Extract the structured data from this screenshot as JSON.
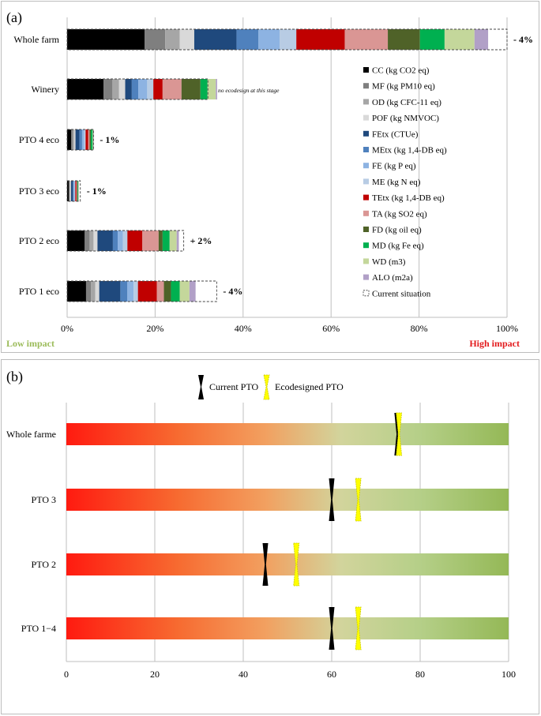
{
  "panel_a": {
    "label": "(a)",
    "low_impact_label": "Low impact",
    "high_impact_label": "High impact",
    "low_impact_color": "#9BBB59",
    "high_impact_color": "#E31A1C",
    "winery_note": "no ecodesign at this stage"
  },
  "panel_b": {
    "label": "(b)",
    "legend": {
      "current": "Current PTO",
      "ecodesigned": "Ecodesigned PTO"
    }
  },
  "chart_data": [
    {
      "type": "bar",
      "orientation": "horizontal-stacked",
      "title": "",
      "xlabel": "",
      "xlim": [
        0,
        100
      ],
      "x_ticks": [
        "0%",
        "20%",
        "40%",
        "60%",
        "80%",
        "100%"
      ],
      "grid": true,
      "legend_position": "right",
      "categories": [
        "Whole farm",
        "Winery",
        "PTO 4 eco",
        "PTO 3 eco",
        "PTO 2 eco",
        "PTO 1 eco"
      ],
      "series": [
        {
          "name": "CC (kg CO2 eq)",
          "color": "#000000",
          "values": [
            17.6,
            8.3,
            0.9,
            0.4,
            4.0,
            4.3
          ]
        },
        {
          "name": "MF (kg PM10 eq)",
          "color": "#7F7F7F",
          "values": [
            4.7,
            2.0,
            0.4,
            0.2,
            1.1,
            1.1
          ]
        },
        {
          "name": "OD (kg CFC-11 eq)",
          "color": "#A6A6A6",
          "values": [
            3.3,
            1.5,
            0.3,
            0.15,
            0.9,
            1.0
          ]
        },
        {
          "name": "POF (kg NMVOC)",
          "color": "#D9D9D9",
          "values": [
            3.3,
            1.4,
            0.3,
            0.15,
            0.9,
            0.9
          ]
        },
        {
          "name": "FEtx (CTUe)",
          "color": "#1F497D",
          "values": [
            9.6,
            1.5,
            0.9,
            0.4,
            3.5,
            4.8
          ]
        },
        {
          "name": "MEtx (kg 1,4-DB eq)",
          "color": "#4F81BD",
          "values": [
            5.0,
            1.5,
            0.6,
            0.2,
            1.1,
            1.6
          ]
        },
        {
          "name": "FE (kg P eq)",
          "color": "#8DB3E2",
          "values": [
            4.8,
            2.0,
            0.5,
            0.2,
            1.2,
            1.4
          ]
        },
        {
          "name": "ME (kg N eq)",
          "color": "#B8CCE4",
          "values": [
            3.8,
            1.4,
            0.3,
            0.15,
            1.0,
            1.0
          ]
        },
        {
          "name": "TEtx (kg 1,4-DB eq)",
          "color": "#C00000",
          "values": [
            11.0,
            2.1,
            0.6,
            0.25,
            3.4,
            4.3
          ]
        },
        {
          "name": "TA (kg SO2 eq)",
          "color": "#DA9694",
          "values": [
            9.8,
            4.3,
            0.3,
            0.15,
            3.7,
            1.6
          ]
        },
        {
          "name": "FD (kg oil eq)",
          "color": "#4F6228",
          "values": [
            7.3,
            4.3,
            0.3,
            0.15,
            0.9,
            1.6
          ]
        },
        {
          "name": "MD (kg Fe eq)",
          "color": "#00B050",
          "values": [
            5.6,
            1.6,
            0.4,
            0.15,
            1.6,
            2.0
          ]
        },
        {
          "name": "WD (m3)",
          "color": "#C4D79B",
          "values": [
            6.8,
            1.9,
            0.2,
            0.1,
            1.6,
            2.2
          ]
        },
        {
          "name": "ALO (m2a)",
          "color": "#B1A0C7",
          "values": [
            3.1,
            0.3,
            0.1,
            0.05,
            0.5,
            1.4
          ]
        }
      ],
      "current_situation": {
        "name": "Current situation",
        "values": [
          100,
          32,
          6,
          3,
          26.5,
          34
        ]
      },
      "change_labels": [
        "- 4%",
        "",
        "- 1%",
        "- 1%",
        "+ 2%",
        "- 4%"
      ]
    },
    {
      "type": "scatter",
      "title": "",
      "xlabel": "",
      "xlim": [
        0,
        100
      ],
      "x_ticks": [
        "0",
        "20",
        "40",
        "60",
        "80",
        "100"
      ],
      "grid": true,
      "background": "gradient red (0) to green (100)",
      "categories": [
        "Whole farme",
        "PTO 3",
        "PTO 2",
        "PTO 1−4"
      ],
      "series": [
        {
          "name": "Current PTO",
          "values": [
            74.8,
            60,
            45,
            60
          ]
        },
        {
          "name": "Ecodesigned PTO",
          "values": [
            75.2,
            66,
            52,
            66
          ]
        }
      ]
    }
  ]
}
